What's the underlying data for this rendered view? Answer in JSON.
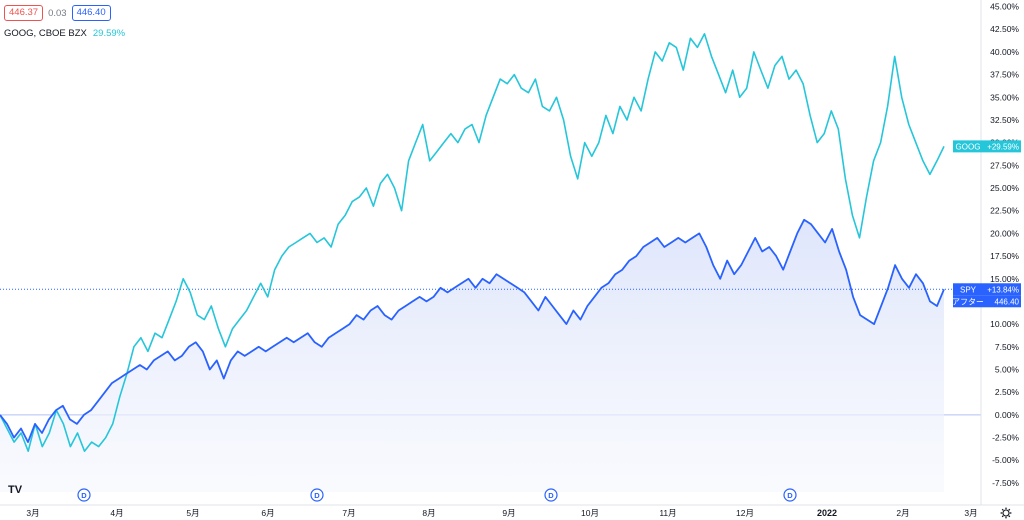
{
  "header": {
    "bid": "446.37",
    "spread": "0.03",
    "ask": "446.40",
    "compare_symbol": "GOOG, CBOE BZX",
    "compare_value": "29.59%"
  },
  "colors": {
    "goog": "#26c6da",
    "spy": "#2962ff",
    "spy_fill_top": "#dbe3fb",
    "zero_line": "#b2c1f5",
    "axis_text": "#131722"
  },
  "labels": {
    "goog_tag_name": "GOOG",
    "goog_tag_value": "+29.59%",
    "spy_tag_name": "SPY",
    "spy_tag_value": "+13.84%",
    "after_label": "アフター",
    "after_value": "446.40",
    "tv_logo": "TV",
    "dividend_marker": "D"
  },
  "chart_data": {
    "type": "line",
    "title": "",
    "xlabel": "",
    "ylabel": "",
    "ylim": [
      -8.5,
      45.5
    ],
    "y_ticks": [
      "45.00%",
      "42.50%",
      "40.00%",
      "37.50%",
      "35.00%",
      "32.50%",
      "30.00%",
      "27.50%",
      "25.00%",
      "22.50%",
      "20.00%",
      "17.50%",
      "15.00%",
      "12.50%",
      "10.00%",
      "7.50%",
      "5.00%",
      "2.50%",
      "0.00%",
      "-2.50%",
      "-5.00%",
      "-7.50%"
    ],
    "x_ticks": [
      "3月",
      "4月",
      "5月",
      "6月",
      "7月",
      "8月",
      "9月",
      "10月",
      "11月",
      "12月",
      "2022",
      "2月",
      "3月"
    ],
    "series": [
      {
        "name": "GOOG",
        "values": [
          0.0,
          -1.5,
          -3.0,
          -2.0,
          -4.0,
          -1.0,
          -3.5,
          -2.0,
          0.5,
          -1.0,
          -3.5,
          -2.0,
          -4.0,
          -3.0,
          -3.5,
          -2.5,
          -1.0,
          2.0,
          4.5,
          7.5,
          8.5,
          7.0,
          9.0,
          8.5,
          10.5,
          12.5,
          15.0,
          13.5,
          11.0,
          10.5,
          12.0,
          9.5,
          7.5,
          9.5,
          10.5,
          11.5,
          13.0,
          14.5,
          13.0,
          16.0,
          17.5,
          18.5,
          19.0,
          19.5,
          20.0,
          19.0,
          19.5,
          18.5,
          21.0,
          22.0,
          23.5,
          24.0,
          25.0,
          23.0,
          25.5,
          26.5,
          25.0,
          22.5,
          28.0,
          30.0,
          32.0,
          28.0,
          29.0,
          30.0,
          31.0,
          30.0,
          31.5,
          32.0,
          30.0,
          33.0,
          35.0,
          37.0,
          36.5,
          37.5,
          36.0,
          35.5,
          37.0,
          34.0,
          33.5,
          35.0,
          32.5,
          28.5,
          26.0,
          30.0,
          28.5,
          30.0,
          33.0,
          31.0,
          34.0,
          32.5,
          35.0,
          33.5,
          37.0,
          40.0,
          39.0,
          41.0,
          40.5,
          38.0,
          41.5,
          40.5,
          42.0,
          39.5,
          37.5,
          35.5,
          38.0,
          35.0,
          36.0,
          40.0,
          38.0,
          36.0,
          38.5,
          39.5,
          37.0,
          38.0,
          36.5,
          33.0,
          30.0,
          31.0,
          33.5,
          31.5,
          26.0,
          22.0,
          19.5,
          24.0,
          28.0,
          30.0,
          34.0,
          39.5,
          35.0,
          32.0,
          30.0,
          28.0,
          26.5,
          28.0,
          29.59
        ]
      },
      {
        "name": "SPY",
        "values": [
          0.0,
          -1.0,
          -2.5,
          -1.5,
          -3.0,
          -1.0,
          -2.0,
          -0.5,
          0.5,
          1.0,
          -0.5,
          -1.0,
          0.0,
          0.5,
          1.5,
          2.5,
          3.5,
          4.0,
          4.5,
          5.0,
          5.5,
          5.0,
          6.0,
          6.5,
          7.0,
          6.0,
          6.5,
          7.5,
          8.0,
          7.0,
          5.0,
          6.0,
          4.0,
          6.0,
          7.0,
          6.5,
          7.0,
          7.5,
          7.0,
          7.5,
          8.0,
          8.5,
          8.0,
          8.5,
          9.0,
          8.0,
          7.5,
          8.5,
          9.0,
          9.5,
          10.0,
          11.0,
          10.5,
          11.5,
          12.0,
          11.0,
          10.5,
          11.5,
          12.0,
          12.5,
          13.0,
          12.5,
          13.0,
          14.0,
          13.5,
          14.0,
          14.5,
          15.0,
          14.0,
          15.0,
          14.5,
          15.5,
          15.0,
          14.5,
          14.0,
          13.5,
          12.5,
          11.5,
          13.0,
          12.0,
          11.0,
          10.0,
          11.5,
          10.5,
          12.0,
          13.0,
          14.0,
          14.5,
          15.5,
          16.0,
          17.0,
          17.5,
          18.5,
          19.0,
          19.5,
          18.5,
          19.0,
          19.5,
          19.0,
          19.5,
          20.0,
          18.5,
          16.5,
          15.0,
          17.0,
          15.5,
          16.5,
          18.0,
          19.5,
          18.0,
          18.5,
          17.5,
          16.0,
          18.0,
          20.0,
          21.5,
          21.0,
          20.0,
          19.0,
          20.5,
          18.0,
          16.0,
          13.0,
          11.0,
          10.5,
          10.0,
          12.0,
          14.0,
          16.5,
          15.0,
          14.0,
          15.5,
          14.5,
          12.5,
          12.0,
          13.84
        ]
      }
    ],
    "annotations": [
      "GOOG +29.59%",
      "SPY +13.84%",
      "アフター 446.40"
    ],
    "dividend_markers_at": [
      "3月",
      "6月",
      "9月",
      "12月"
    ],
    "grid": false,
    "legend": "top-left"
  }
}
